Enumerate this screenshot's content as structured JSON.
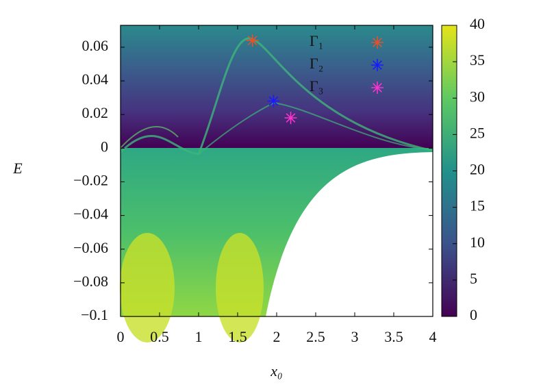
{
  "chart_data": {
    "type": "scatter",
    "xlabel": "x₀",
    "ylabel": "E",
    "xlim": [
      0,
      4
    ],
    "xticks": [
      0,
      0.5,
      1,
      1.5,
      2,
      2.5,
      3,
      3.5,
      4
    ],
    "ylim": [
      -0.1,
      0.073
    ],
    "yticks": [
      {
        "value": -0.1,
        "label": "−0.1"
      },
      {
        "value": -0.08,
        "label": "−0.08"
      },
      {
        "value": -0.06,
        "label": "−0.06"
      },
      {
        "value": -0.04,
        "label": "−0.04"
      },
      {
        "value": -0.02,
        "label": "−0.02"
      },
      0,
      0.02,
      0.04,
      0.06
    ],
    "clim": [
      0,
      40
    ],
    "cticks": [
      0,
      5,
      10,
      15,
      20,
      25,
      30,
      35,
      40
    ],
    "series": [
      {
        "name": "Γ₁",
        "color": "#e8502a",
        "x": [
          1.69
        ],
        "values": [
          0.064
        ]
      },
      {
        "name": "Γ₂",
        "color": "#1a1aff",
        "x": [
          1.96
        ],
        "values": [
          0.028
        ]
      },
      {
        "name": "Γ₃",
        "color": "#ff33cc",
        "x": [
          2.18
        ],
        "values": [
          0.018
        ]
      }
    ]
  }
}
